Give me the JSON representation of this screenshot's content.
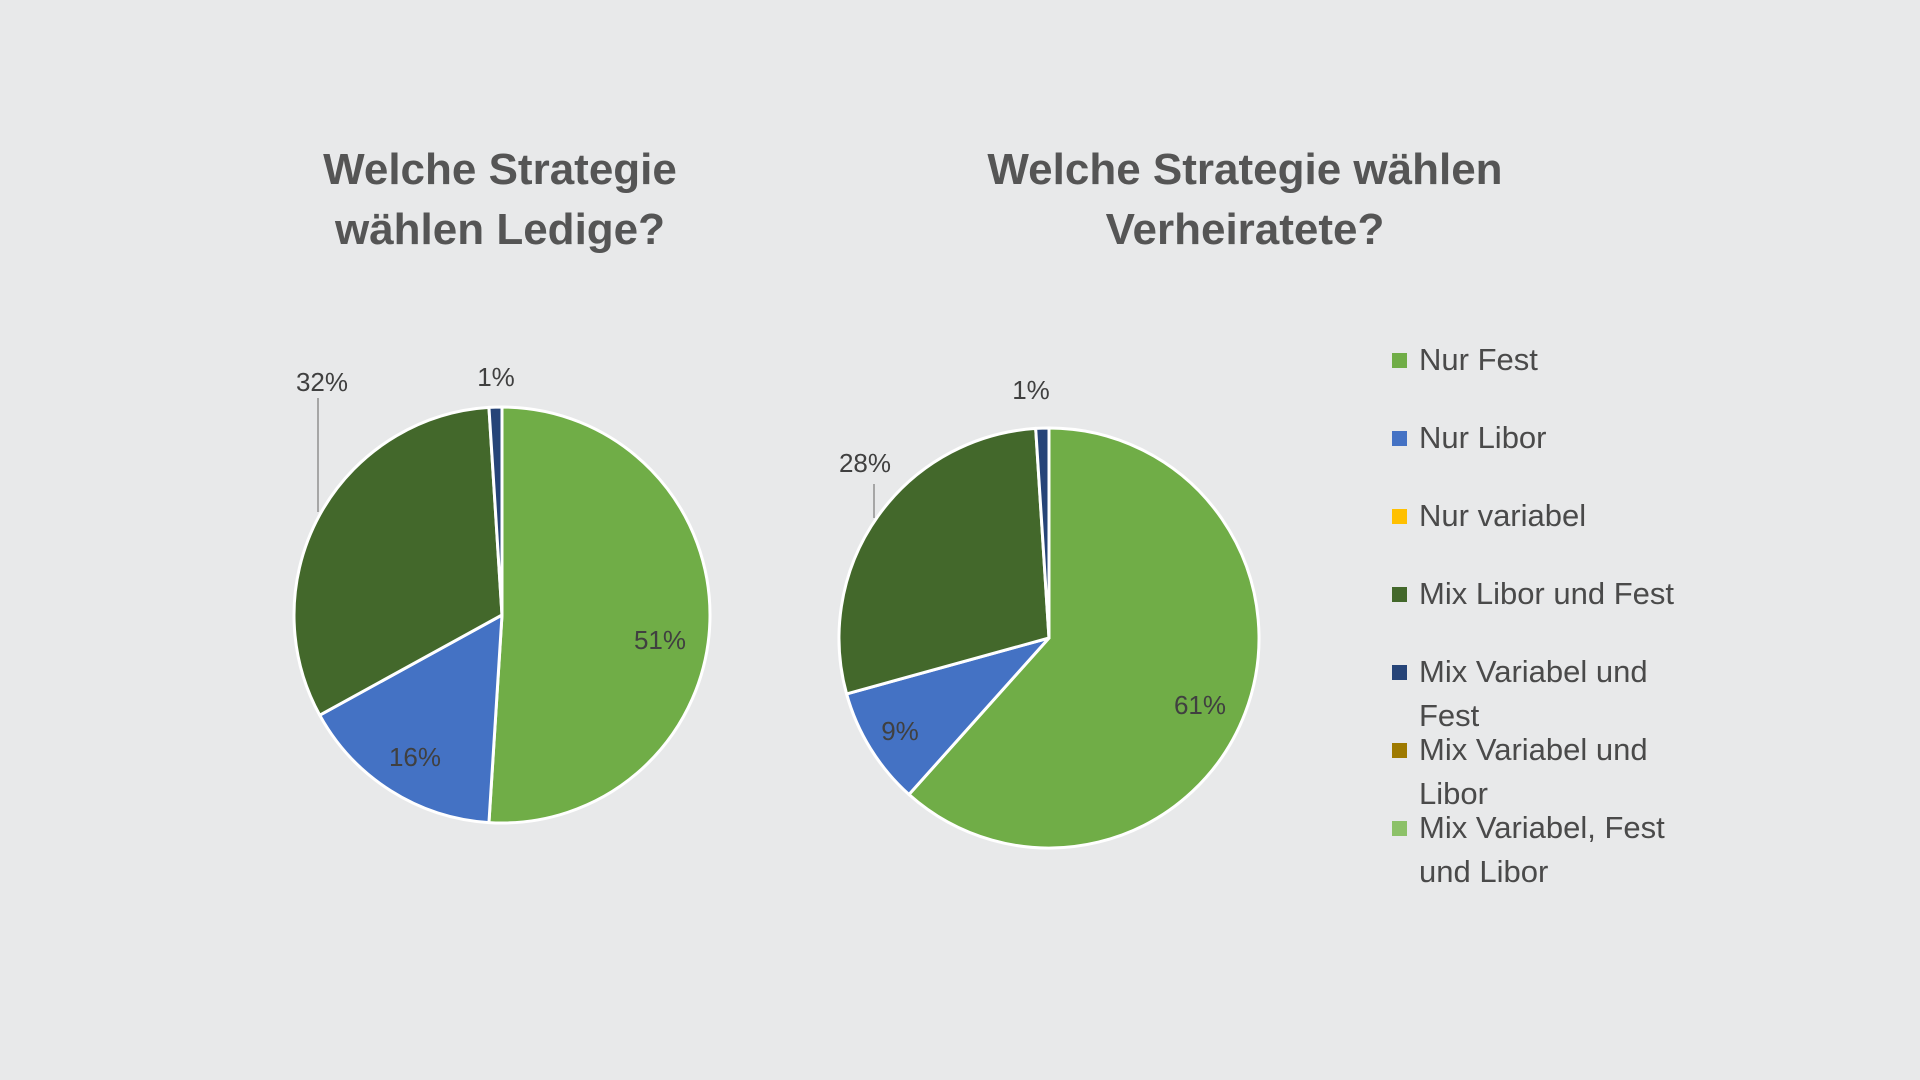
{
  "chart_data": [
    {
      "type": "pie",
      "title": "Welche Strategie wählen Ledige?",
      "categories": [
        "Nur Fest",
        "Nur Libor",
        "Mix Libor und Fest",
        "Mix Variabel und Fest"
      ],
      "values": [
        51,
        16,
        32,
        1
      ],
      "data_labels": [
        "51%",
        "16%",
        "32%",
        "1%"
      ],
      "colors": [
        "#70ad47",
        "#4472c4",
        "#43682b",
        "#264478"
      ]
    },
    {
      "type": "pie",
      "title": "Welche Strategie wählen Verheiratete?",
      "categories": [
        "Nur Fest",
        "Nur Libor",
        "Mix Libor und Fest",
        "Mix Variabel und Fest"
      ],
      "values": [
        61,
        9,
        28,
        1
      ],
      "data_labels": [
        "61%",
        "9%",
        "28%",
        "1%"
      ],
      "colors": [
        "#70ad47",
        "#4472c4",
        "#43682b",
        "#264478"
      ]
    }
  ],
  "legend": {
    "placement": "right",
    "items": [
      {
        "label": "Nur Fest",
        "color": "#70ad47"
      },
      {
        "label": "Nur Libor",
        "color": "#4472c4"
      },
      {
        "label": "Nur variabel",
        "color": "#ffc000"
      },
      {
        "label": "Mix Libor und Fest",
        "color": "#43682b"
      },
      {
        "label": "Mix Variabel und Fest",
        "color": "#264478"
      },
      {
        "label": "Mix Variabel und Libor",
        "color": "#9e7a00"
      },
      {
        "label": "Mix Variabel, Fest und Libor",
        "color": "#8cc168"
      }
    ]
  }
}
